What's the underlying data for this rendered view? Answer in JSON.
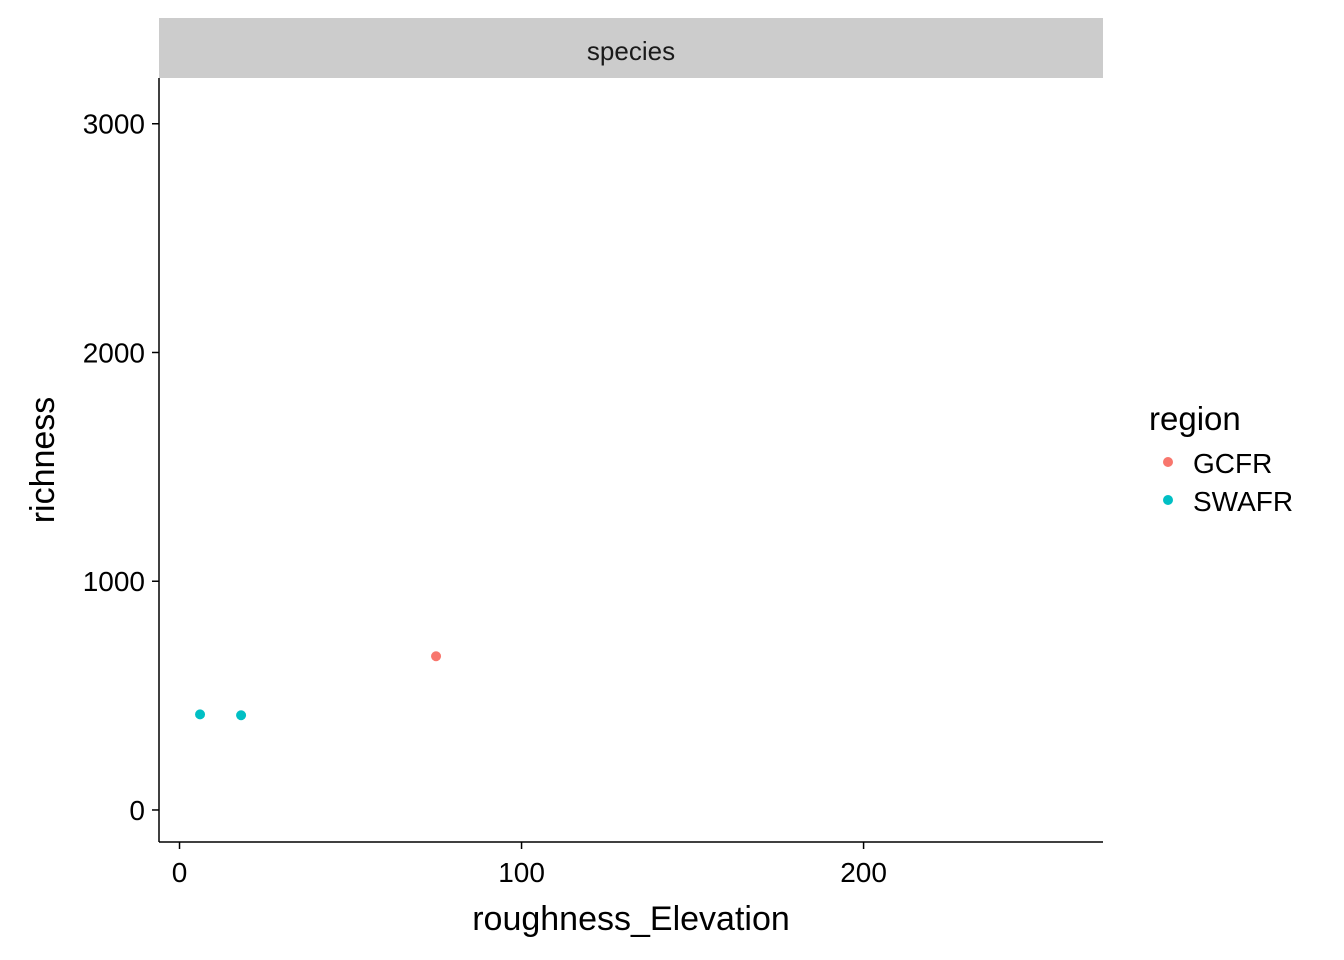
{
  "chart_data": {
    "type": "scatter",
    "facet_label": "species",
    "xlabel": "roughness_Elevation",
    "ylabel": "richness",
    "xlim": [
      -6,
      270
    ],
    "ylim": [
      -140,
      3200
    ],
    "x_ticks": [
      0,
      100,
      200
    ],
    "y_ticks": [
      0,
      1000,
      2000,
      3000
    ],
    "grid": false,
    "legend": {
      "title": "region",
      "position": "right",
      "entries": [
        {
          "name": "GCFR",
          "color": "#F8766D"
        },
        {
          "name": "SWAFR",
          "color": "#00BFC4"
        }
      ]
    },
    "series": [
      {
        "name": "GCFR",
        "color": "#F8766D",
        "points": [
          {
            "x": 75,
            "y": 672
          }
        ]
      },
      {
        "name": "SWAFR",
        "color": "#00BFC4",
        "points": [
          {
            "x": 6,
            "y": 418
          },
          {
            "x": 18,
            "y": 414
          }
        ]
      }
    ]
  }
}
